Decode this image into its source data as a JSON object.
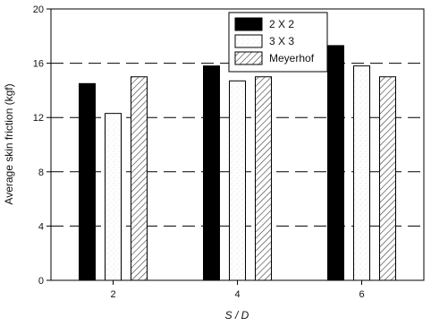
{
  "chart_data": {
    "type": "bar",
    "categories": [
      "2",
      "4",
      "6"
    ],
    "series": [
      {
        "name": "2 X 2",
        "values": [
          14.5,
          15.8,
          17.3
        ],
        "style": "solid-black"
      },
      {
        "name": "3 X 3",
        "values": [
          12.3,
          14.7,
          15.8
        ],
        "style": "white-speckled"
      },
      {
        "name": "Meyerhof",
        "values": [
          15.0,
          15.0,
          15.0
        ],
        "style": "diagonal-hatch"
      }
    ],
    "xlabel": "S / D",
    "ylabel": "Average skin friction (kgf)",
    "ylim": [
      0,
      20
    ],
    "yticks": [
      "0",
      "4",
      "8",
      "12",
      "16",
      "20"
    ],
    "grid": "horizontal dashed at major ticks",
    "legend_position": "top-center",
    "colors": {
      "solid": "#000000",
      "outline": "#000000",
      "background": "#ffffff"
    }
  }
}
